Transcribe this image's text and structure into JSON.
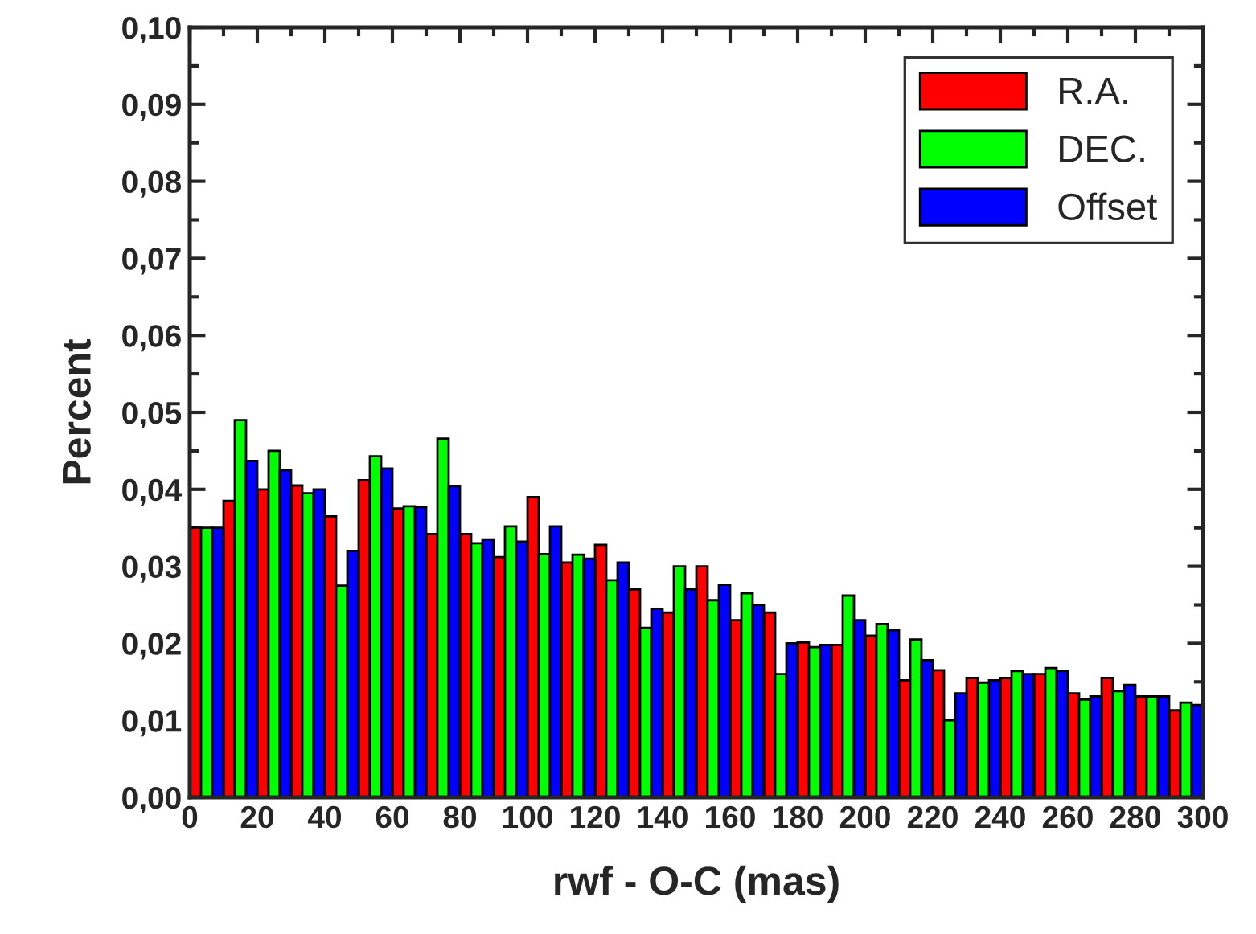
{
  "chart_data": {
    "type": "bar",
    "xlabel": "rwf - O-C (mas)",
    "ylabel": "Percent",
    "x": [
      5,
      15,
      25,
      35,
      45,
      55,
      65,
      75,
      85,
      95,
      105,
      115,
      125,
      135,
      145,
      155,
      165,
      175,
      185,
      195,
      205,
      215,
      225,
      235,
      245,
      255,
      265,
      275,
      285,
      295
    ],
    "series": [
      {
        "name": "R.A.",
        "color": "#ff0000",
        "values": [
          0.035,
          0.0385,
          0.04,
          0.0405,
          0.0365,
          0.0412,
          0.0375,
          0.0342,
          0.0342,
          0.0312,
          0.039,
          0.0305,
          0.0328,
          0.027,
          0.024,
          0.03,
          0.023,
          0.024,
          0.0201,
          0.0198,
          0.021,
          0.0152,
          0.0165,
          0.0155,
          0.0155,
          0.016,
          0.0135,
          0.0155,
          0.0131,
          0.0113
        ]
      },
      {
        "name": "DEC.",
        "color": "#00ff00",
        "values": [
          0.035,
          0.049,
          0.045,
          0.0395,
          0.0275,
          0.0443,
          0.0378,
          0.0466,
          0.033,
          0.0352,
          0.0316,
          0.0315,
          0.0282,
          0.022,
          0.03,
          0.0256,
          0.0265,
          0.016,
          0.0195,
          0.0262,
          0.0225,
          0.0205,
          0.01,
          0.0149,
          0.0164,
          0.0168,
          0.0127,
          0.0138,
          0.0131,
          0.0123
        ]
      },
      {
        "name": "Offset",
        "color": "#0000ff",
        "values": [
          0.035,
          0.0437,
          0.0425,
          0.04,
          0.032,
          0.0427,
          0.0377,
          0.0404,
          0.0335,
          0.0332,
          0.0352,
          0.031,
          0.0305,
          0.0245,
          0.027,
          0.0276,
          0.025,
          0.02,
          0.0198,
          0.023,
          0.0217,
          0.0178,
          0.0135,
          0.0152,
          0.016,
          0.0164,
          0.0131,
          0.0146,
          0.0131,
          0.012
        ]
      }
    ],
    "xlim": [
      0,
      300
    ],
    "xticks": [
      0,
      20,
      40,
      60,
      80,
      100,
      120,
      140,
      160,
      180,
      200,
      220,
      240,
      260,
      280,
      300
    ],
    "ylim": [
      0,
      0.1
    ],
    "yticks": [
      {
        "value": 0,
        "label": "0,00"
      },
      {
        "value": 0.01,
        "label": "0,01"
      },
      {
        "value": 0.02,
        "label": "0,02"
      },
      {
        "value": 0.03,
        "label": "0,03"
      },
      {
        "value": 0.04,
        "label": "0,04"
      },
      {
        "value": 0.05,
        "label": "0,05"
      },
      {
        "value": 0.06,
        "label": "0,06"
      },
      {
        "value": 0.07,
        "label": "0,07"
      },
      {
        "value": 0.08,
        "label": "0,08"
      },
      {
        "value": 0.09,
        "label": "0,09"
      },
      {
        "value": 0.1,
        "label": "0,10"
      }
    ],
    "legend": "top right",
    "grid": false
  }
}
